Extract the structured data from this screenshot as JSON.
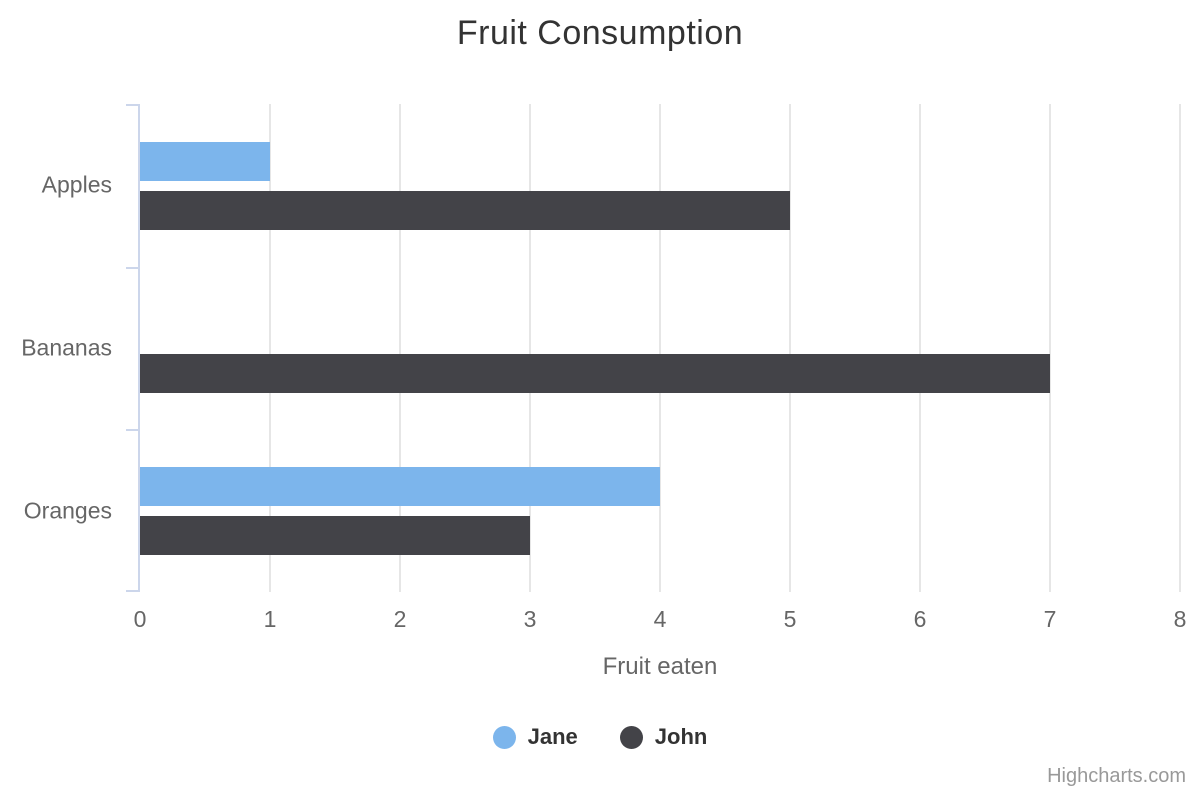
{
  "chart_data": {
    "type": "bar",
    "orientation": "horizontal",
    "title": "Fruit Consumption",
    "categories": [
      "Apples",
      "Bananas",
      "Oranges"
    ],
    "series": [
      {
        "name": "Jane",
        "color": "#7cb5ec",
        "values": [
          1,
          0,
          4
        ]
      },
      {
        "name": "John",
        "color": "#434348",
        "values": [
          5,
          7,
          3
        ]
      }
    ],
    "xlabel": "Fruit eaten",
    "ylabel": "",
    "value_axis": {
      "min": 0,
      "max": 8,
      "ticks": [
        0,
        1,
        2,
        3,
        4,
        5,
        6,
        7,
        8
      ]
    },
    "grid": true,
    "legend_position": "bottom"
  },
  "credits": {
    "label": "Highcharts.com"
  },
  "colors": {
    "title_text": "#333333",
    "axis_label_text": "#666666",
    "axis_line": "#ccd6eb",
    "grid_line": "#e6e6e6",
    "legend_text": "#333333",
    "credits_text": "#999999",
    "background": "#ffffff"
  }
}
